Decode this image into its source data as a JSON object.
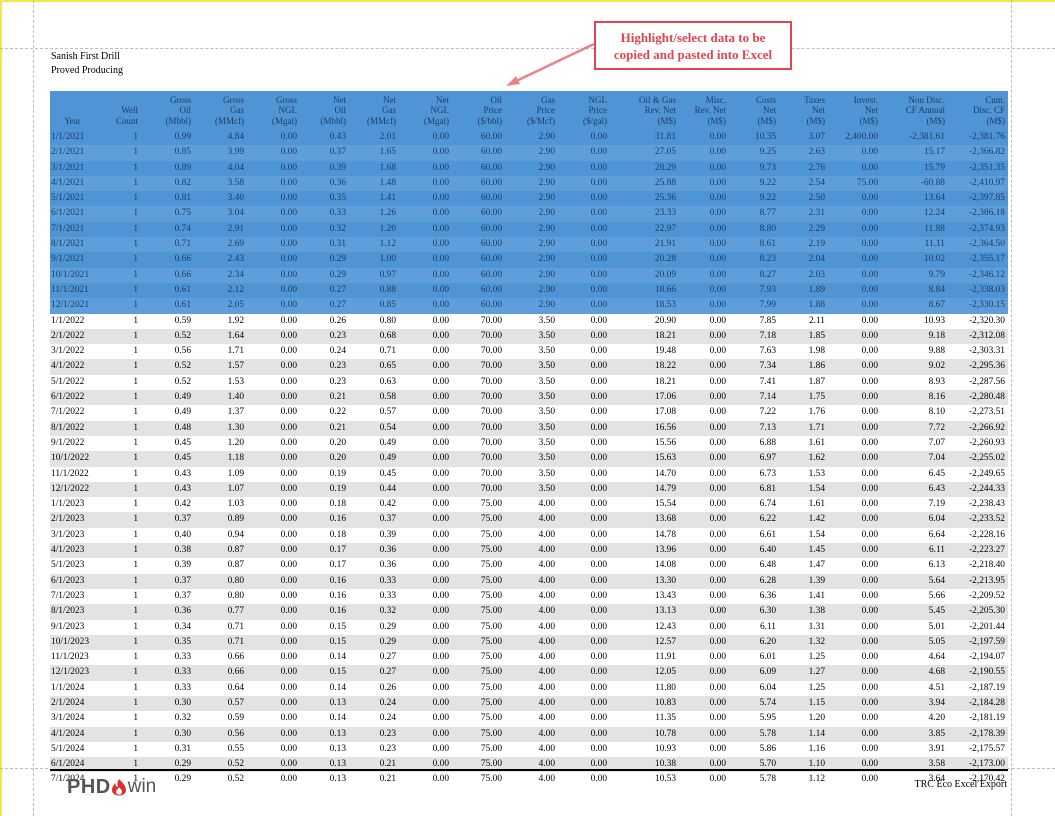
{
  "report": {
    "company": "Sanish First Drill",
    "category": "Proved Producing"
  },
  "callout": {
    "line1": "Highlight/select data to be",
    "line2": "copied and pasted into Excel",
    "color": "#e0464f"
  },
  "table": {
    "selection_color": "#4f94d4",
    "headers": [
      "Year",
      "Well\nCount",
      "Gross\nOil\n(Mbbl)",
      "Gross\nGas\n(MMcf)",
      "Gross\nNGL\n(Mgal)",
      "Net\nOil\n(Mbbl)",
      "Net\nGas\n(MMcf)",
      "Net\nNGL\n(Mgal)",
      "Oil\nPrice\n($/bbl)",
      "Gas\nPrice\n($/Mcf)",
      "NGL\nPrice\n($/gal)",
      "Oil & Gas\nRev. Net\n(M$)",
      "Misc.\nRev. Net\n(M$)",
      "Costs\nNet\n(M$)",
      "Taxes\nNet\n(M$)",
      "Invest.\nNet\n(M$)",
      "Non Disc.\nCF Annual\n(M$)",
      "Cum.\nDisc. CF\n(M$)"
    ],
    "selected_rows": 12,
    "rows": [
      [
        "1/1/2021",
        "1",
        "0.99",
        "4.84",
        "0.00",
        "0.43",
        "2.01",
        "0.00",
        "60.00",
        "2.90",
        "0.00",
        "31.81",
        "0.00",
        "10.35",
        "3.07",
        "2,400.00",
        "-2,381.61",
        "-2,381.76"
      ],
      [
        "2/1/2021",
        "1",
        "0.85",
        "3.99",
        "0.00",
        "0.37",
        "1.65",
        "0.00",
        "60.00",
        "2.90",
        "0.00",
        "27.05",
        "0.00",
        "9.25",
        "2.63",
        "0.00",
        "15.17",
        "-2,366.82"
      ],
      [
        "3/1/2021",
        "1",
        "0.89",
        "4.04",
        "0.00",
        "0.39",
        "1.68",
        "0.00",
        "60.00",
        "2.90",
        "0.00",
        "28.29",
        "0.00",
        "9.73",
        "2.76",
        "0.00",
        "15.79",
        "-2,351.35"
      ],
      [
        "4/1/2021",
        "1",
        "0.82",
        "3.58",
        "0.00",
        "0.36",
        "1.48",
        "0.00",
        "60.00",
        "2.90",
        "0.00",
        "25.88",
        "0.00",
        "9.22",
        "2.54",
        "75.00",
        "-60.88",
        "-2,410.97"
      ],
      [
        "5/1/2021",
        "1",
        "0.81",
        "3.40",
        "0.00",
        "0.35",
        "1.41",
        "0.00",
        "60.00",
        "2.90",
        "0.00",
        "25.36",
        "0.00",
        "9.22",
        "2.50",
        "0.00",
        "13.64",
        "-2,397.85"
      ],
      [
        "6/1/2021",
        "1",
        "0.75",
        "3.04",
        "0.00",
        "0.33",
        "1.26",
        "0.00",
        "60.00",
        "2.90",
        "0.00",
        "23.33",
        "0.00",
        "8.77",
        "2.31",
        "0.00",
        "12.24",
        "-2,386.18"
      ],
      [
        "7/1/2021",
        "1",
        "0.74",
        "2.91",
        "0.00",
        "0.32",
        "1.20",
        "0.00",
        "60.00",
        "2.90",
        "0.00",
        "22.97",
        "0.00",
        "8.80",
        "2.29",
        "0.00",
        "11.88",
        "-2,374.93"
      ],
      [
        "8/1/2021",
        "1",
        "0.71",
        "2.69",
        "0.00",
        "0.31",
        "1.12",
        "0.00",
        "60.00",
        "2.90",
        "0.00",
        "21.91",
        "0.00",
        "8.61",
        "2.19",
        "0.00",
        "11.11",
        "-2,364.50"
      ],
      [
        "9/1/2021",
        "1",
        "0.66",
        "2.43",
        "0.00",
        "0.29",
        "1.00",
        "0.00",
        "60.00",
        "2.90",
        "0.00",
        "20.28",
        "0.00",
        "8.23",
        "2.04",
        "0.00",
        "10.02",
        "-2,355.17"
      ],
      [
        "10/1/2021",
        "1",
        "0.66",
        "2.34",
        "0.00",
        "0.29",
        "0.97",
        "0.00",
        "60.00",
        "2.90",
        "0.00",
        "20.09",
        "0.00",
        "8.27",
        "2.03",
        "0.00",
        "9.79",
        "-2,346.12"
      ],
      [
        "11/1/2021",
        "1",
        "0.61",
        "2.12",
        "0.00",
        "0.27",
        "0.88",
        "0.00",
        "60.00",
        "2.90",
        "0.00",
        "18.66",
        "0.00",
        "7.93",
        "1.89",
        "0.00",
        "8.84",
        "-2,338.03"
      ],
      [
        "12/1/2021",
        "1",
        "0.61",
        "2.05",
        "0.00",
        "0.27",
        "0.85",
        "0.00",
        "60.00",
        "2.90",
        "0.00",
        "18.53",
        "0.00",
        "7.99",
        "1.88",
        "0.00",
        "8.67",
        "-2,330.15"
      ],
      [
        "1/1/2022",
        "1",
        "0.59",
        "1.92",
        "0.00",
        "0.26",
        "0.80",
        "0.00",
        "70.00",
        "3.50",
        "0.00",
        "20.90",
        "0.00",
        "7.85",
        "2.11",
        "0.00",
        "10.93",
        "-2,320.30"
      ],
      [
        "2/1/2022",
        "1",
        "0.52",
        "1.64",
        "0.00",
        "0.23",
        "0.68",
        "0.00",
        "70.00",
        "3.50",
        "0.00",
        "18.21",
        "0.00",
        "7.18",
        "1.85",
        "0.00",
        "9.18",
        "-2,312.08"
      ],
      [
        "3/1/2022",
        "1",
        "0.56",
        "1.71",
        "0.00",
        "0.24",
        "0.71",
        "0.00",
        "70.00",
        "3.50",
        "0.00",
        "19.48",
        "0.00",
        "7.63",
        "1.98",
        "0.00",
        "9.88",
        "-2,303.31"
      ],
      [
        "4/1/2022",
        "1",
        "0.52",
        "1.57",
        "0.00",
        "0.23",
        "0.65",
        "0.00",
        "70.00",
        "3.50",
        "0.00",
        "18.22",
        "0.00",
        "7.34",
        "1.86",
        "0.00",
        "9.02",
        "-2,295.36"
      ],
      [
        "5/1/2022",
        "1",
        "0.52",
        "1.53",
        "0.00",
        "0.23",
        "0.63",
        "0.00",
        "70.00",
        "3.50",
        "0.00",
        "18.21",
        "0.00",
        "7.41",
        "1.87",
        "0.00",
        "8.93",
        "-2,287.56"
      ],
      [
        "6/1/2022",
        "1",
        "0.49",
        "1.40",
        "0.00",
        "0.21",
        "0.58",
        "0.00",
        "70.00",
        "3.50",
        "0.00",
        "17.06",
        "0.00",
        "7.14",
        "1.75",
        "0.00",
        "8.16",
        "-2,280.48"
      ],
      [
        "7/1/2022",
        "1",
        "0.49",
        "1.37",
        "0.00",
        "0.22",
        "0.57",
        "0.00",
        "70.00",
        "3.50",
        "0.00",
        "17.08",
        "0.00",
        "7.22",
        "1.76",
        "0.00",
        "8.10",
        "-2,273.51"
      ],
      [
        "8/1/2022",
        "1",
        "0.48",
        "1.30",
        "0.00",
        "0.21",
        "0.54",
        "0.00",
        "70.00",
        "3.50",
        "0.00",
        "16.56",
        "0.00",
        "7.13",
        "1.71",
        "0.00",
        "7.72",
        "-2,266.92"
      ],
      [
        "9/1/2022",
        "1",
        "0.45",
        "1.20",
        "0.00",
        "0.20",
        "0.49",
        "0.00",
        "70.00",
        "3.50",
        "0.00",
        "15.56",
        "0.00",
        "6.88",
        "1.61",
        "0.00",
        "7.07",
        "-2,260.93"
      ],
      [
        "10/1/2022",
        "1",
        "0.45",
        "1.18",
        "0.00",
        "0.20",
        "0.49",
        "0.00",
        "70.00",
        "3.50",
        "0.00",
        "15.63",
        "0.00",
        "6.97",
        "1.62",
        "0.00",
        "7.04",
        "-2,255.02"
      ],
      [
        "11/1/2022",
        "1",
        "0.43",
        "1.09",
        "0.00",
        "0.19",
        "0.45",
        "0.00",
        "70.00",
        "3.50",
        "0.00",
        "14.70",
        "0.00",
        "6.73",
        "1.53",
        "0.00",
        "6.45",
        "-2,249.65"
      ],
      [
        "12/1/2022",
        "1",
        "0.43",
        "1.07",
        "0.00",
        "0.19",
        "0.44",
        "0.00",
        "70.00",
        "3.50",
        "0.00",
        "14.79",
        "0.00",
        "6.81",
        "1.54",
        "0.00",
        "6.43",
        "-2,244.33"
      ],
      [
        "1/1/2023",
        "1",
        "0.42",
        "1.03",
        "0.00",
        "0.18",
        "0.42",
        "0.00",
        "75.00",
        "4.00",
        "0.00",
        "15.54",
        "0.00",
        "6.74",
        "1.61",
        "0.00",
        "7.19",
        "-2,238.43"
      ],
      [
        "2/1/2023",
        "1",
        "0.37",
        "0.89",
        "0.00",
        "0.16",
        "0.37",
        "0.00",
        "75.00",
        "4.00",
        "0.00",
        "13.68",
        "0.00",
        "6.22",
        "1.42",
        "0.00",
        "6.04",
        "-2,233.52"
      ],
      [
        "3/1/2023",
        "1",
        "0.40",
        "0.94",
        "0.00",
        "0.18",
        "0.39",
        "0.00",
        "75.00",
        "4.00",
        "0.00",
        "14.78",
        "0.00",
        "6.61",
        "1.54",
        "0.00",
        "6.64",
        "-2,228.16"
      ],
      [
        "4/1/2023",
        "1",
        "0.38",
        "0.87",
        "0.00",
        "0.17",
        "0.36",
        "0.00",
        "75.00",
        "4.00",
        "0.00",
        "13.96",
        "0.00",
        "6.40",
        "1.45",
        "0.00",
        "6.11",
        "-2,223.27"
      ],
      [
        "5/1/2023",
        "1",
        "0.39",
        "0.87",
        "0.00",
        "0.17",
        "0.36",
        "0.00",
        "75.00",
        "4.00",
        "0.00",
        "14.08",
        "0.00",
        "6.48",
        "1.47",
        "0.00",
        "6.13",
        "-2,218.40"
      ],
      [
        "6/1/2023",
        "1",
        "0.37",
        "0.80",
        "0.00",
        "0.16",
        "0.33",
        "0.00",
        "75.00",
        "4.00",
        "0.00",
        "13.30",
        "0.00",
        "6.28",
        "1.39",
        "0.00",
        "5.64",
        "-2,213.95"
      ],
      [
        "7/1/2023",
        "1",
        "0.37",
        "0.80",
        "0.00",
        "0.16",
        "0.33",
        "0.00",
        "75.00",
        "4.00",
        "0.00",
        "13.43",
        "0.00",
        "6.36",
        "1.41",
        "0.00",
        "5.66",
        "-2,209.52"
      ],
      [
        "8/1/2023",
        "1",
        "0.36",
        "0.77",
        "0.00",
        "0.16",
        "0.32",
        "0.00",
        "75.00",
        "4.00",
        "0.00",
        "13.13",
        "0.00",
        "6.30",
        "1.38",
        "0.00",
        "5.45",
        "-2,205.30"
      ],
      [
        "9/1/2023",
        "1",
        "0.34",
        "0.71",
        "0.00",
        "0.15",
        "0.29",
        "0.00",
        "75.00",
        "4.00",
        "0.00",
        "12.43",
        "0.00",
        "6.11",
        "1.31",
        "0.00",
        "5.01",
        "-2,201.44"
      ],
      [
        "10/1/2023",
        "1",
        "0.35",
        "0.71",
        "0.00",
        "0.15",
        "0.29",
        "0.00",
        "75.00",
        "4.00",
        "0.00",
        "12.57",
        "0.00",
        "6.20",
        "1.32",
        "0.00",
        "5.05",
        "-2,197.59"
      ],
      [
        "11/1/2023",
        "1",
        "0.33",
        "0.66",
        "0.00",
        "0.14",
        "0.27",
        "0.00",
        "75.00",
        "4.00",
        "0.00",
        "11.91",
        "0.00",
        "6.01",
        "1.25",
        "0.00",
        "4.64",
        "-2,194.07"
      ],
      [
        "12/1/2023",
        "1",
        "0.33",
        "0.66",
        "0.00",
        "0.15",
        "0.27",
        "0.00",
        "75.00",
        "4.00",
        "0.00",
        "12.05",
        "0.00",
        "6.09",
        "1.27",
        "0.00",
        "4.68",
        "-2,190.55"
      ],
      [
        "1/1/2024",
        "1",
        "0.33",
        "0.64",
        "0.00",
        "0.14",
        "0.26",
        "0.00",
        "75.00",
        "4.00",
        "0.00",
        "11.80",
        "0.00",
        "6.04",
        "1.25",
        "0.00",
        "4.51",
        "-2,187.19"
      ],
      [
        "2/1/2024",
        "1",
        "0.30",
        "0.57",
        "0.00",
        "0.13",
        "0.24",
        "0.00",
        "75.00",
        "4.00",
        "0.00",
        "10.83",
        "0.00",
        "5.74",
        "1.15",
        "0.00",
        "3.94",
        "-2,184.28"
      ],
      [
        "3/1/2024",
        "1",
        "0.32",
        "0.59",
        "0.00",
        "0.14",
        "0.24",
        "0.00",
        "75.00",
        "4.00",
        "0.00",
        "11.35",
        "0.00",
        "5.95",
        "1.20",
        "0.00",
        "4.20",
        "-2,181.19"
      ],
      [
        "4/1/2024",
        "1",
        "0.30",
        "0.56",
        "0.00",
        "0.13",
        "0.23",
        "0.00",
        "75.00",
        "4.00",
        "0.00",
        "10.78",
        "0.00",
        "5.78",
        "1.14",
        "0.00",
        "3.85",
        "-2,178.39"
      ],
      [
        "5/1/2024",
        "1",
        "0.31",
        "0.55",
        "0.00",
        "0.13",
        "0.23",
        "0.00",
        "75.00",
        "4.00",
        "0.00",
        "10.93",
        "0.00",
        "5.86",
        "1.16",
        "0.00",
        "3.91",
        "-2,175.57"
      ],
      [
        "6/1/2024",
        "1",
        "0.29",
        "0.52",
        "0.00",
        "0.13",
        "0.21",
        "0.00",
        "75.00",
        "4.00",
        "0.00",
        "10.38",
        "0.00",
        "5.70",
        "1.10",
        "0.00",
        "3.58",
        "-2,173.00"
      ],
      [
        "7/1/2024",
        "1",
        "0.29",
        "0.52",
        "0.00",
        "0.13",
        "0.21",
        "0.00",
        "75.00",
        "4.00",
        "0.00",
        "10.53",
        "0.00",
        "5.78",
        "1.12",
        "0.00",
        "3.64",
        "-2,170.42"
      ]
    ]
  },
  "footer": {
    "logo_phd": "PHD",
    "logo_win": "win",
    "logo_flame_color": "#d9322b",
    "export_label": "TRC Eco Excel Export"
  }
}
